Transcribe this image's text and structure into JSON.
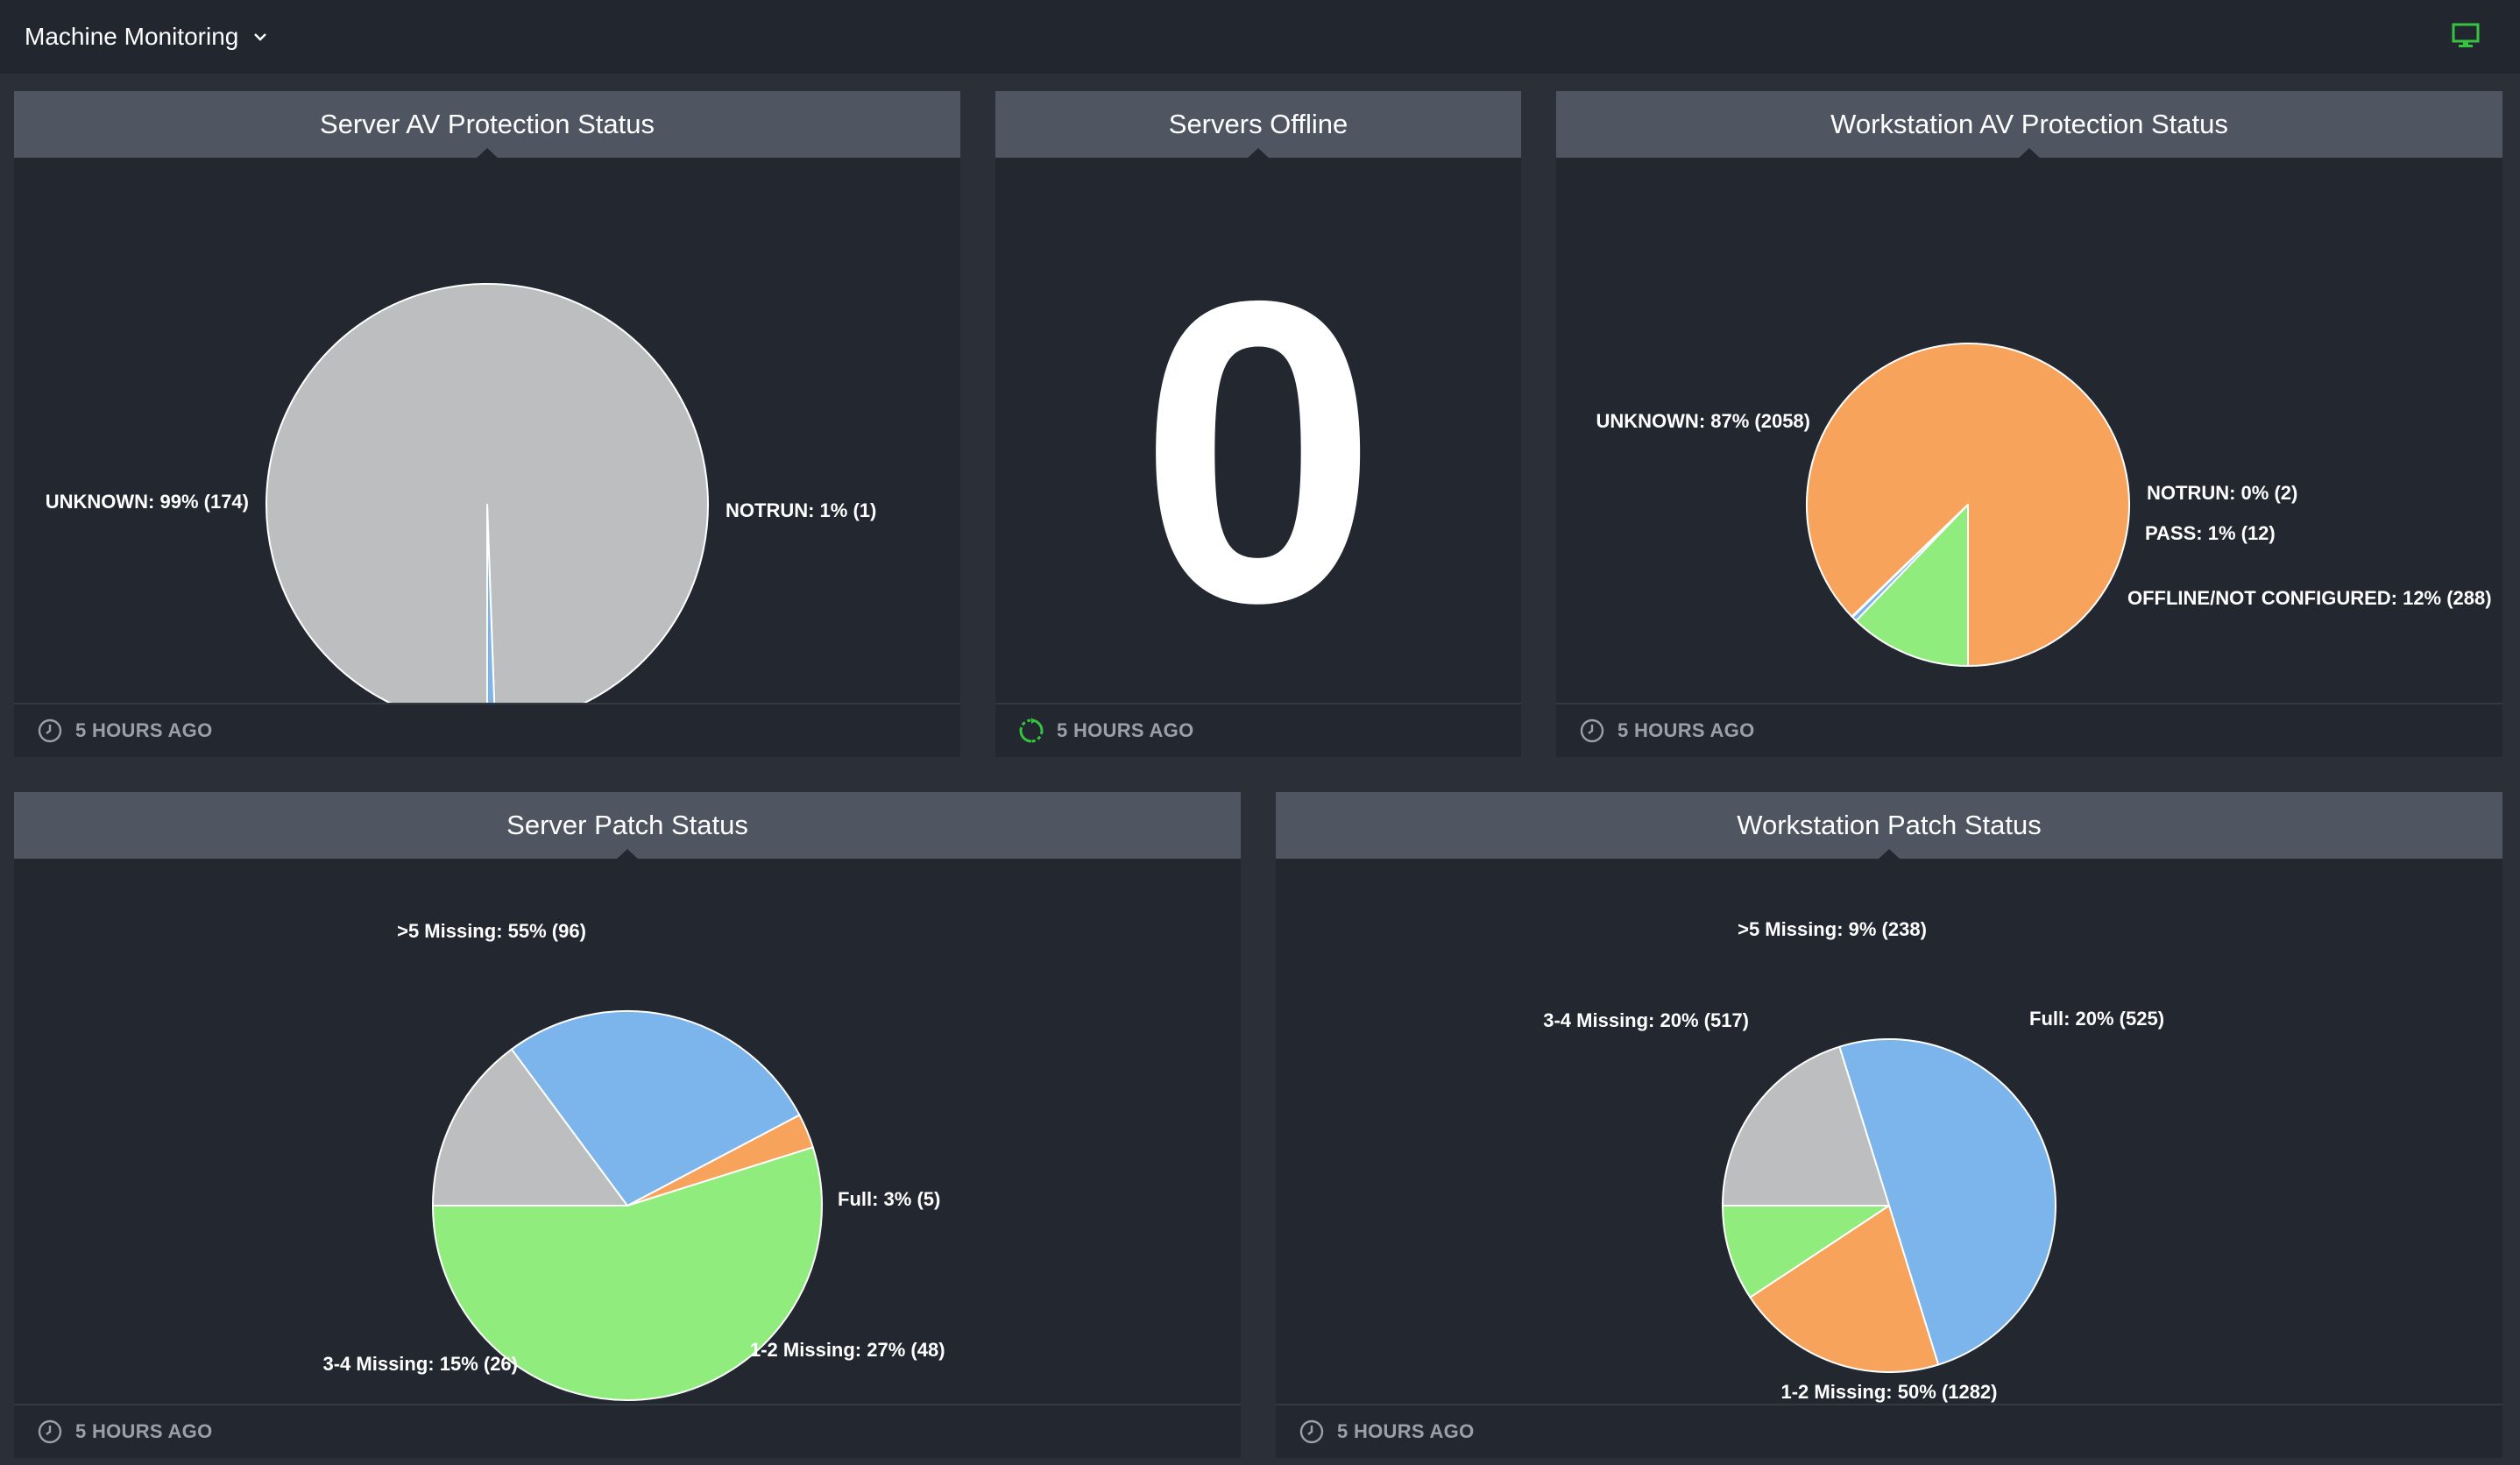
{
  "header": {
    "title": "Machine Monitoring"
  },
  "panels": {
    "server_av": {
      "title": "Server AV Protection Status",
      "footer": "5 HOURS AGO",
      "chart_data": {
        "type": "pie",
        "slices": [
          {
            "label": "UNKNOWN: 99% (174)",
            "category": "UNKNOWN",
            "value": 174,
            "color": "#bdbebf"
          },
          {
            "label": "NOTRUN: 1% (1)",
            "category": "NOTRUN",
            "value": 1,
            "color": "#7cb4ec"
          }
        ]
      }
    },
    "servers_offline": {
      "title": "Servers Offline",
      "value": "0",
      "footer": "5 HOURS AGO"
    },
    "workstation_av": {
      "title": "Workstation AV Protection Status",
      "footer": "5 HOURS AGO",
      "chart_data": {
        "type": "pie",
        "slices": [
          {
            "label": "UNKNOWN: 87% (2058)",
            "category": "UNKNOWN",
            "value": 2058,
            "color": "#f7a35c"
          },
          {
            "label": "NOTRUN: 0% (2)",
            "category": "NOTRUN",
            "value": 2,
            "color": "#bdbebf"
          },
          {
            "label": "PASS: 1% (12)",
            "category": "PASS",
            "value": 12,
            "color": "#7cb4ec"
          },
          {
            "label": "OFFLINE/NOT CONFIGURED: 12% (288)",
            "category": "OFFLINE/NOT CONFIGURED",
            "value": 288,
            "color": "#90ed7d"
          }
        ]
      }
    },
    "server_patch": {
      "title": "Server Patch Status",
      "footer": "5 HOURS AGO",
      "chart_data": {
        "type": "pie",
        "slices": [
          {
            "label": ">5 Missing: 55% (96)",
            "category": ">5 Missing",
            "value": 96,
            "color": "#90ed7d"
          },
          {
            "label": "Full: 3% (5)",
            "category": "Full",
            "value": 5,
            "color": "#f7a35c"
          },
          {
            "label": "1-2 Missing: 27% (48)",
            "category": "1-2 Missing",
            "value": 48,
            "color": "#7cb4ec"
          },
          {
            "label": "3-4 Missing: 15% (26)",
            "category": "3-4 Missing",
            "value": 26,
            "color": "#bdbebf"
          }
        ]
      }
    },
    "workstation_patch": {
      "title": "Workstation Patch Status",
      "footer": "5 HOURS AGO",
      "chart_data": {
        "type": "pie",
        "slices": [
          {
            "label": ">5 Missing: 9% (238)",
            "category": ">5 Missing",
            "value": 238,
            "color": "#90ed7d"
          },
          {
            "label": "Full: 20% (525)",
            "category": "Full",
            "value": 525,
            "color": "#f7a35c"
          },
          {
            "label": "1-2 Missing: 50% (1282)",
            "category": "1-2 Missing",
            "value": 1282,
            "color": "#7cb4ec"
          },
          {
            "label": "3-4 Missing: 20% (517)",
            "category": "3-4 Missing",
            "value": 517,
            "color": "#bdbebf"
          }
        ]
      }
    }
  },
  "icons": {
    "clock": "clock-icon",
    "refresh": "refresh-icon",
    "monitor": "monitor-icon",
    "chevron": "chevron-down-icon"
  },
  "colors": {
    "accent_green": "#35c43f",
    "panel_header": "#4f5662",
    "panel_body": "#232730"
  }
}
